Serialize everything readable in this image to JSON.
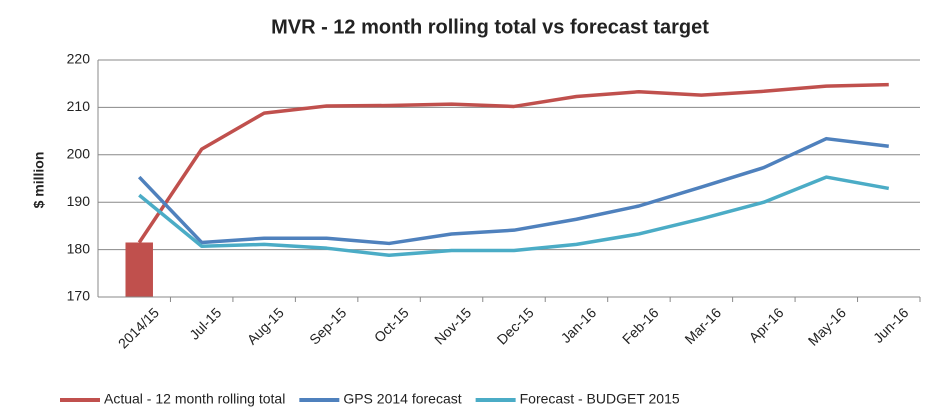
{
  "chart_data": {
    "type": "line",
    "title": "MVR - 12 month rolling total vs forecast target",
    "y_label": "$ million",
    "categories": [
      "2014/15",
      "Jul-15",
      "Aug-15",
      "Sep-15",
      "Oct-15",
      "Nov-15",
      "Dec-15",
      "Jan-16",
      "Feb-16",
      "Mar-16",
      "Apr-16",
      "May-16",
      "Jun-16"
    ],
    "series": [
      {
        "type": "bar",
        "color": "#c0504d",
        "values": [
          181.5,
          null,
          null,
          null,
          null,
          null,
          null,
          null,
          null,
          null,
          null,
          null,
          null
        ]
      },
      {
        "name": "Actual - 12 month rolling total",
        "color": "#c0504d",
        "values": [
          181.5,
          201.2,
          208.8,
          210.3,
          210.4,
          210.7,
          210.2,
          212.3,
          213.3,
          212.6,
          213.4,
          214.5,
          214.8
        ]
      },
      {
        "name": "GPS 2014 forecast",
        "color": "#4f81bd",
        "values": [
          195.3,
          181.5,
          182.4,
          182.4,
          181.3,
          183.3,
          184.1,
          186.4,
          189.2,
          193.2,
          197.3,
          203.4,
          201.8
        ]
      },
      {
        "name": "Forecast - BUDGET 2015",
        "color": "#4bacc6",
        "values": [
          191.5,
          180.7,
          181.1,
          180.3,
          178.8,
          179.8,
          179.8,
          181.1,
          183.3,
          186.5,
          190.0,
          195.3,
          192.9
        ]
      }
    ],
    "ylim": [
      170,
      220
    ],
    "yticks": [
      170,
      180,
      190,
      200,
      210,
      220
    ],
    "grid": true
  }
}
